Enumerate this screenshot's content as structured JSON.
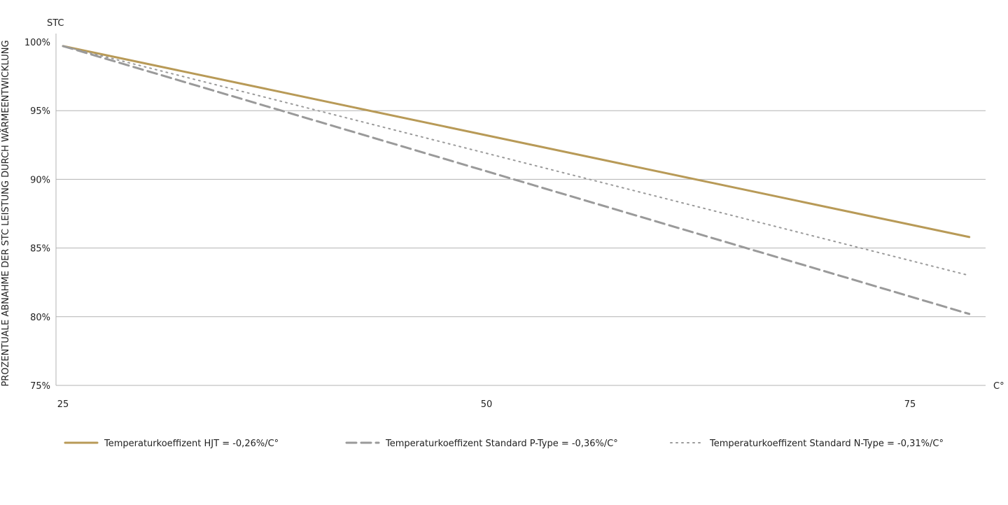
{
  "chart_data": {
    "type": "line",
    "ylabel": "PROZENTUALE ABNAHME DER STC LEISTUNG DURCH WÄRMEENTWICKLUNG",
    "y_top_label": "STC",
    "x_unit_label": "C°",
    "xlim": [
      25,
      79
    ],
    "ylim": [
      75,
      100
    ],
    "x_ticks": [
      25,
      50,
      75
    ],
    "y_ticks": [
      {
        "value": 100,
        "label": "100%"
      },
      {
        "value": 95,
        "label": "95%"
      },
      {
        "value": 90,
        "label": "90%"
      },
      {
        "value": 85,
        "label": "85%"
      },
      {
        "value": 80,
        "label": "80%"
      },
      {
        "value": 75,
        "label": "75%"
      }
    ],
    "grid": "horizontal",
    "legend_position": "bottom",
    "series": [
      {
        "name": "Temperaturkoeffizent HJT = -0,26%/C°",
        "color": "#b89a57",
        "style": "solid",
        "x": [
          25,
          78.5
        ],
        "y": [
          99.7,
          85.8
        ]
      },
      {
        "name": "Temperaturkoeffizent Standard P-Type = -0,36%/C°",
        "color": "#9a9a9a",
        "style": "dashed",
        "x": [
          25,
          78.5
        ],
        "y": [
          99.7,
          80.2
        ]
      },
      {
        "name": "Temperaturkoeffizent Standard N-Type = -0,31%/C°",
        "color": "#9a9a9a",
        "style": "dotted",
        "x": [
          25,
          78.5
        ],
        "y": [
          99.7,
          83.0
        ]
      }
    ]
  }
}
